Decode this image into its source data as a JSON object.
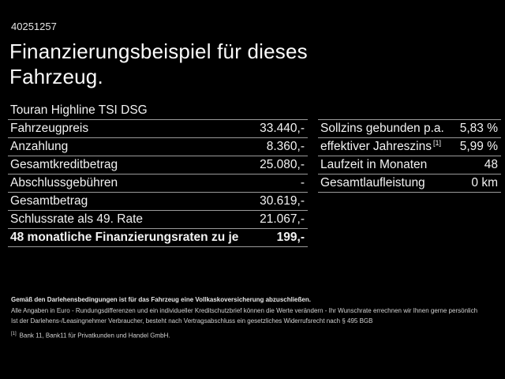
{
  "header": {
    "id_number": "40251257",
    "title_line1": "Finanzierungsbeispiel für dieses",
    "title_line2": "Fahrzeug."
  },
  "vehicle": {
    "model": "Touran Highline TSI DSG"
  },
  "finance_table": {
    "rows": [
      {
        "label": "Fahrzeugpreis",
        "value": "33.440,-"
      },
      {
        "label": "Anzahlung",
        "value": "8.360,-"
      },
      {
        "label": "Gesamtkreditbetrag",
        "value": "25.080,-"
      },
      {
        "label": "Abschlussgebühren",
        "value": "-"
      },
      {
        "label": "Gesamtbetrag",
        "value": "30.619,-"
      },
      {
        "label": "Schlussrate als 49. Rate",
        "value": "21.067,-"
      },
      {
        "label": "48 monatliche Finanzierungsraten zu je",
        "value": "199,-"
      }
    ]
  },
  "conditions_table": {
    "rows": [
      {
        "label": "Sollzins gebunden p.a.",
        "value": "5,83 %"
      },
      {
        "label": "effektiver Jahreszins",
        "footnote_marker": "[1]",
        "value": "5,99 %"
      },
      {
        "label": "Laufzeit in Monaten",
        "value": "48"
      },
      {
        "label": "Gesamtlaufleistung",
        "value": "0 km"
      }
    ]
  },
  "footer": {
    "bold_note": "Gemäß den Darlehensbedingungen ist für das Fahrzeug eine Vollkaskoversicherung abzuschließen.",
    "note2": "Alle Angaben in Euro - Rundungsdifferenzen und ein individueller Kreditschutzbrief können die Werte verändern - Ihr Wunschrate errechnen wir Ihnen gerne persönlich",
    "note3": "Ist der Darlehens-/Leasingnehmer Verbraucher, besteht nach Vertragsabschluss ein gesetzliches Widerrufsrecht nach § 495 BGB",
    "footnote_marker": "[1]",
    "footnote_text": "Bank 11, Bank11 für Privatkunden und Handel GmbH."
  },
  "colors": {
    "background": "#000000",
    "text": "#f2f2f2",
    "separator": "#9a9a9a"
  }
}
